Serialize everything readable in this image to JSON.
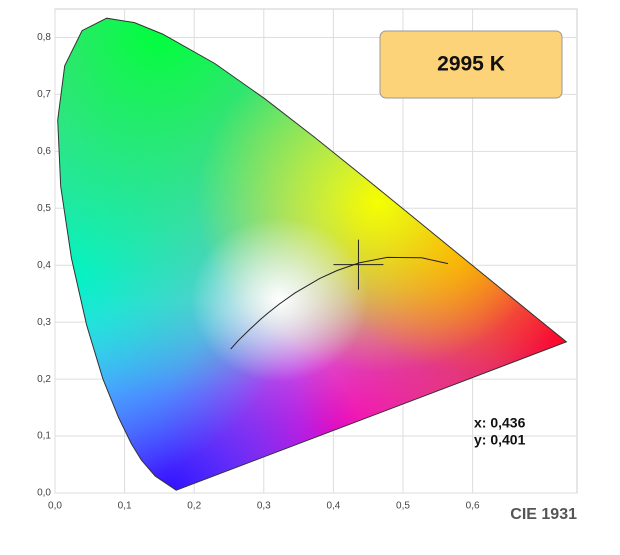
{
  "chart_data": {
    "type": "chromaticity",
    "title": "CIE 1931",
    "cct_label": "2995 K",
    "annotations": [
      "x: 0,436",
      "y: 0,401"
    ],
    "point": {
      "x": 0.436,
      "y": 0.401
    },
    "xlim": [
      0,
      0.75
    ],
    "ylim": [
      0,
      0.85
    ],
    "xticks": [
      {
        "value": 0,
        "label": "0,0"
      },
      {
        "value": 0.1,
        "label": "0,1"
      },
      {
        "value": 0.2,
        "label": "0,2"
      },
      {
        "value": 0.3,
        "label": "0,3"
      },
      {
        "value": 0.4,
        "label": "0,4"
      },
      {
        "value": 0.5,
        "label": "0,5"
      },
      {
        "value": 0.6,
        "label": "0,6"
      }
    ],
    "yticks": [
      {
        "value": 0,
        "label": "0,0"
      },
      {
        "value": 0.1,
        "label": "0,1"
      },
      {
        "value": 0.2,
        "label": "0,2"
      },
      {
        "value": 0.3,
        "label": "0,3"
      },
      {
        "value": 0.4,
        "label": "0,4"
      },
      {
        "value": 0.5,
        "label": "0,5"
      },
      {
        "value": 0.6,
        "label": "0,6"
      },
      {
        "value": 0.7,
        "label": "0,7"
      },
      {
        "value": 0.8,
        "label": "0,8"
      }
    ],
    "grid": true,
    "spectral_locus": {
      "x": [
        0.1741,
        0.144,
        0.1241,
        0.1096,
        0.0913,
        0.0687,
        0.0454,
        0.0235,
        0.0082,
        0.0039,
        0.0139,
        0.0389,
        0.0743,
        0.1142,
        0.1547,
        0.2296,
        0.3016,
        0.3731,
        0.4441,
        0.5125,
        0.5752,
        0.627,
        0.6915,
        0.7347
      ],
      "y": [
        0.005,
        0.0297,
        0.0578,
        0.0868,
        0.1327,
        0.2007,
        0.295,
        0.4127,
        0.5384,
        0.6548,
        0.7502,
        0.812,
        0.8338,
        0.8262,
        0.8059,
        0.7543,
        0.6923,
        0.6245,
        0.5547,
        0.4866,
        0.4242,
        0.3725,
        0.3083,
        0.2653
      ]
    },
    "planckian_locus": {
      "x": [
        0.5646,
        0.5267,
        0.477,
        0.4369,
        0.4053,
        0.3805,
        0.3451,
        0.3221,
        0.3064,
        0.2952,
        0.2807,
        0.2637,
        0.2525
      ],
      "y": [
        0.4029,
        0.4133,
        0.4137,
        0.4041,
        0.3907,
        0.3768,
        0.3516,
        0.3318,
        0.3166,
        0.3048,
        0.2884,
        0.2681,
        0.2528
      ]
    }
  }
}
